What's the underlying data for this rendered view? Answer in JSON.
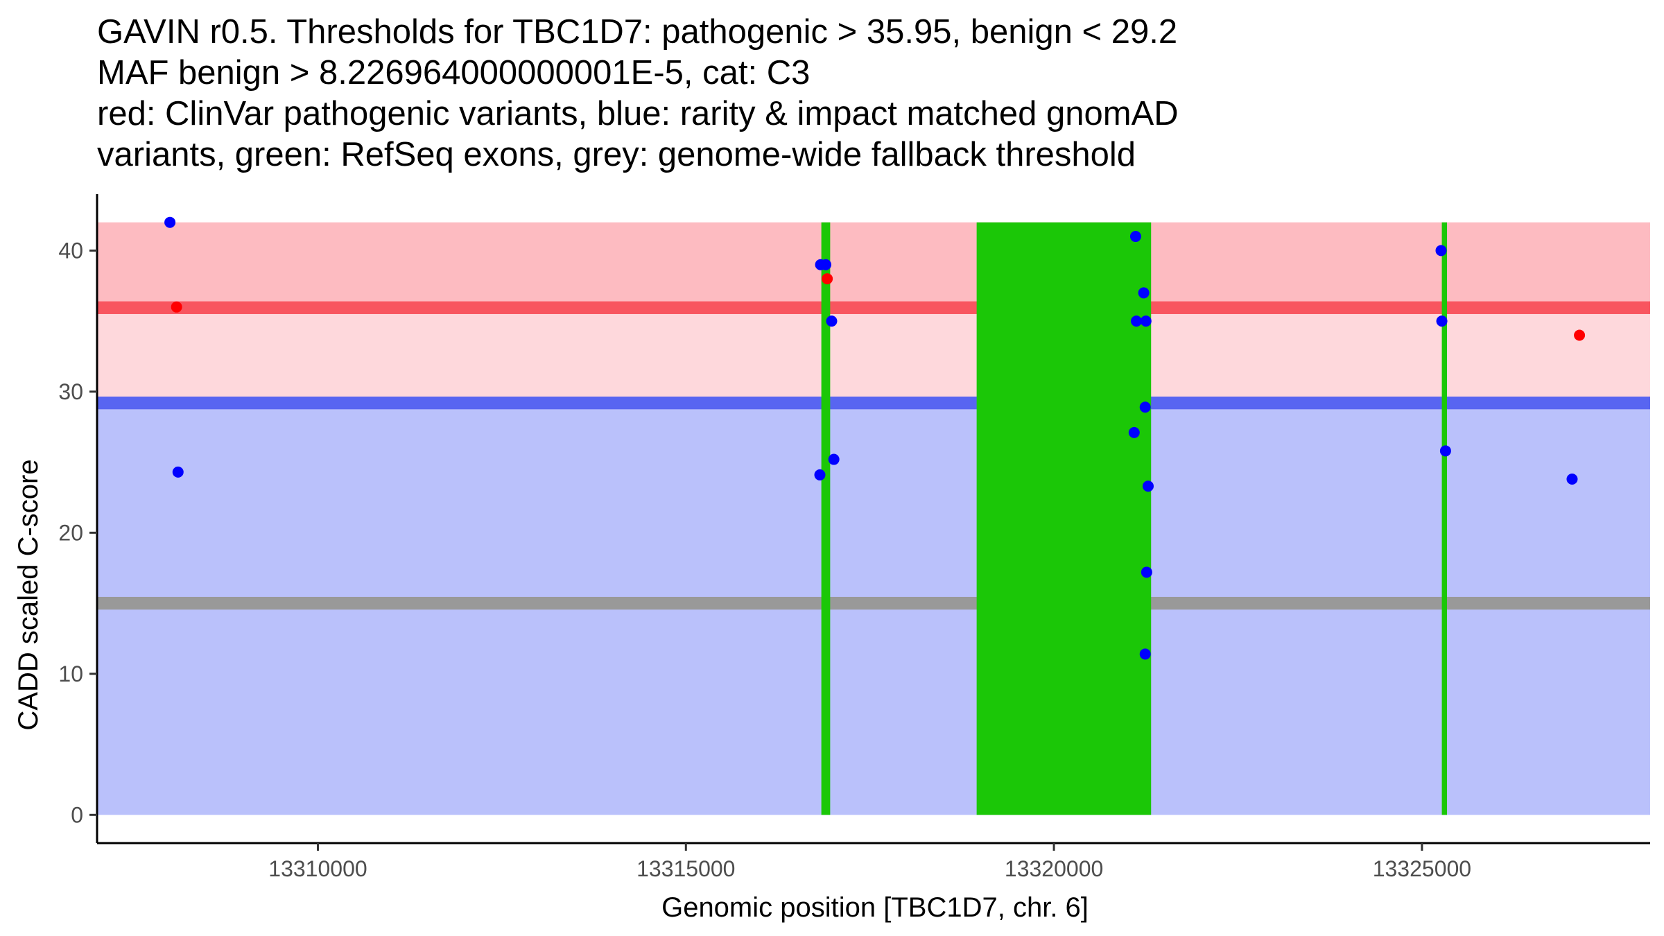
{
  "chart_data": {
    "type": "scatter",
    "title_lines": [
      "GAVIN r0.5. Thresholds for TBC1D7: pathogenic > 35.95, benign < 29.2",
      "MAF benign > 8.226964000000001E-5, cat: C3",
      "red: ClinVar pathogenic variants, blue: rarity & impact matched gnomAD",
      "variants, green: RefSeq exons, grey: genome-wide fallback threshold"
    ],
    "xlabel": "Genomic position [TBC1D7, chr. 6]",
    "ylabel": "CADD scaled C-score",
    "xlim": [
      13307000,
      13328100
    ],
    "ylim": [
      -2,
      44
    ],
    "x_ticks": [
      {
        "value": 13310000,
        "label": "13310000"
      },
      {
        "value": 13315000,
        "label": "13315000"
      },
      {
        "value": 13320000,
        "label": "13320000"
      },
      {
        "value": 13325000,
        "label": "13325000"
      }
    ],
    "y_ticks": [
      {
        "value": 0,
        "label": "0"
      },
      {
        "value": 10,
        "label": "10"
      },
      {
        "value": 20,
        "label": "20"
      },
      {
        "value": 30,
        "label": "30"
      },
      {
        "value": 40,
        "label": "40"
      }
    ],
    "regions": [
      {
        "name": "benign-zone",
        "x": [
          13307000,
          13328100
        ],
        "y": [
          0,
          29.2
        ],
        "color": "#bac1fb"
      },
      {
        "name": "uncertain-zone",
        "x": [
          13307000,
          13328100
        ],
        "y": [
          29.2,
          35.95
        ],
        "color": "#fed8dc"
      },
      {
        "name": "pathogenic-zone",
        "x": [
          13307000,
          13328100
        ],
        "y": [
          35.95,
          42
        ],
        "color": "#fdbbc1"
      }
    ],
    "threshold_lines": [
      {
        "name": "pathogenic-threshold",
        "y": 35.95,
        "color": "#f8555f",
        "band": 0.9
      },
      {
        "name": "benign-threshold",
        "y": 29.2,
        "color": "#5865f1",
        "band": 0.9
      },
      {
        "name": "fallback-threshold",
        "y": 15.0,
        "color": "#999999",
        "band": 0.9
      }
    ],
    "exons": [
      {
        "start": 13316840,
        "end": 13316960,
        "y": [
          0,
          42
        ],
        "color": "#1bc707"
      },
      {
        "start": 13318950,
        "end": 13321320,
        "y": [
          0,
          42
        ],
        "color": "#1bc707"
      },
      {
        "start": 13325270,
        "end": 13325340,
        "y": [
          0,
          42
        ],
        "color": "#1bc707"
      }
    ],
    "series": [
      {
        "name": "ClinVar pathogenic",
        "color": "#ff0000",
        "points": [
          {
            "x": 13308080,
            "y": 36.0
          },
          {
            "x": 13316920,
            "y": 38.0
          },
          {
            "x": 13327140,
            "y": 34.0
          }
        ]
      },
      {
        "name": "gnomAD matched",
        "color": "#0000ff",
        "points": [
          {
            "x": 13307990,
            "y": 42.0
          },
          {
            "x": 13308100,
            "y": 24.3
          },
          {
            "x": 13316830,
            "y": 39.0
          },
          {
            "x": 13316900,
            "y": 39.0
          },
          {
            "x": 13316980,
            "y": 35.0
          },
          {
            "x": 13316820,
            "y": 24.1
          },
          {
            "x": 13317010,
            "y": 25.2
          },
          {
            "x": 13321110,
            "y": 41.0
          },
          {
            "x": 13321220,
            "y": 37.0
          },
          {
            "x": 13321120,
            "y": 35.0
          },
          {
            "x": 13321250,
            "y": 35.0
          },
          {
            "x": 13321240,
            "y": 28.9
          },
          {
            "x": 13321090,
            "y": 27.1
          },
          {
            "x": 13321280,
            "y": 23.3
          },
          {
            "x": 13321260,
            "y": 17.2
          },
          {
            "x": 13321240,
            "y": 11.4
          },
          {
            "x": 13325260,
            "y": 40.0
          },
          {
            "x": 13325270,
            "y": 35.0
          },
          {
            "x": 13325320,
            "y": 25.8
          },
          {
            "x": 13327040,
            "y": 23.8
          }
        ]
      }
    ]
  }
}
